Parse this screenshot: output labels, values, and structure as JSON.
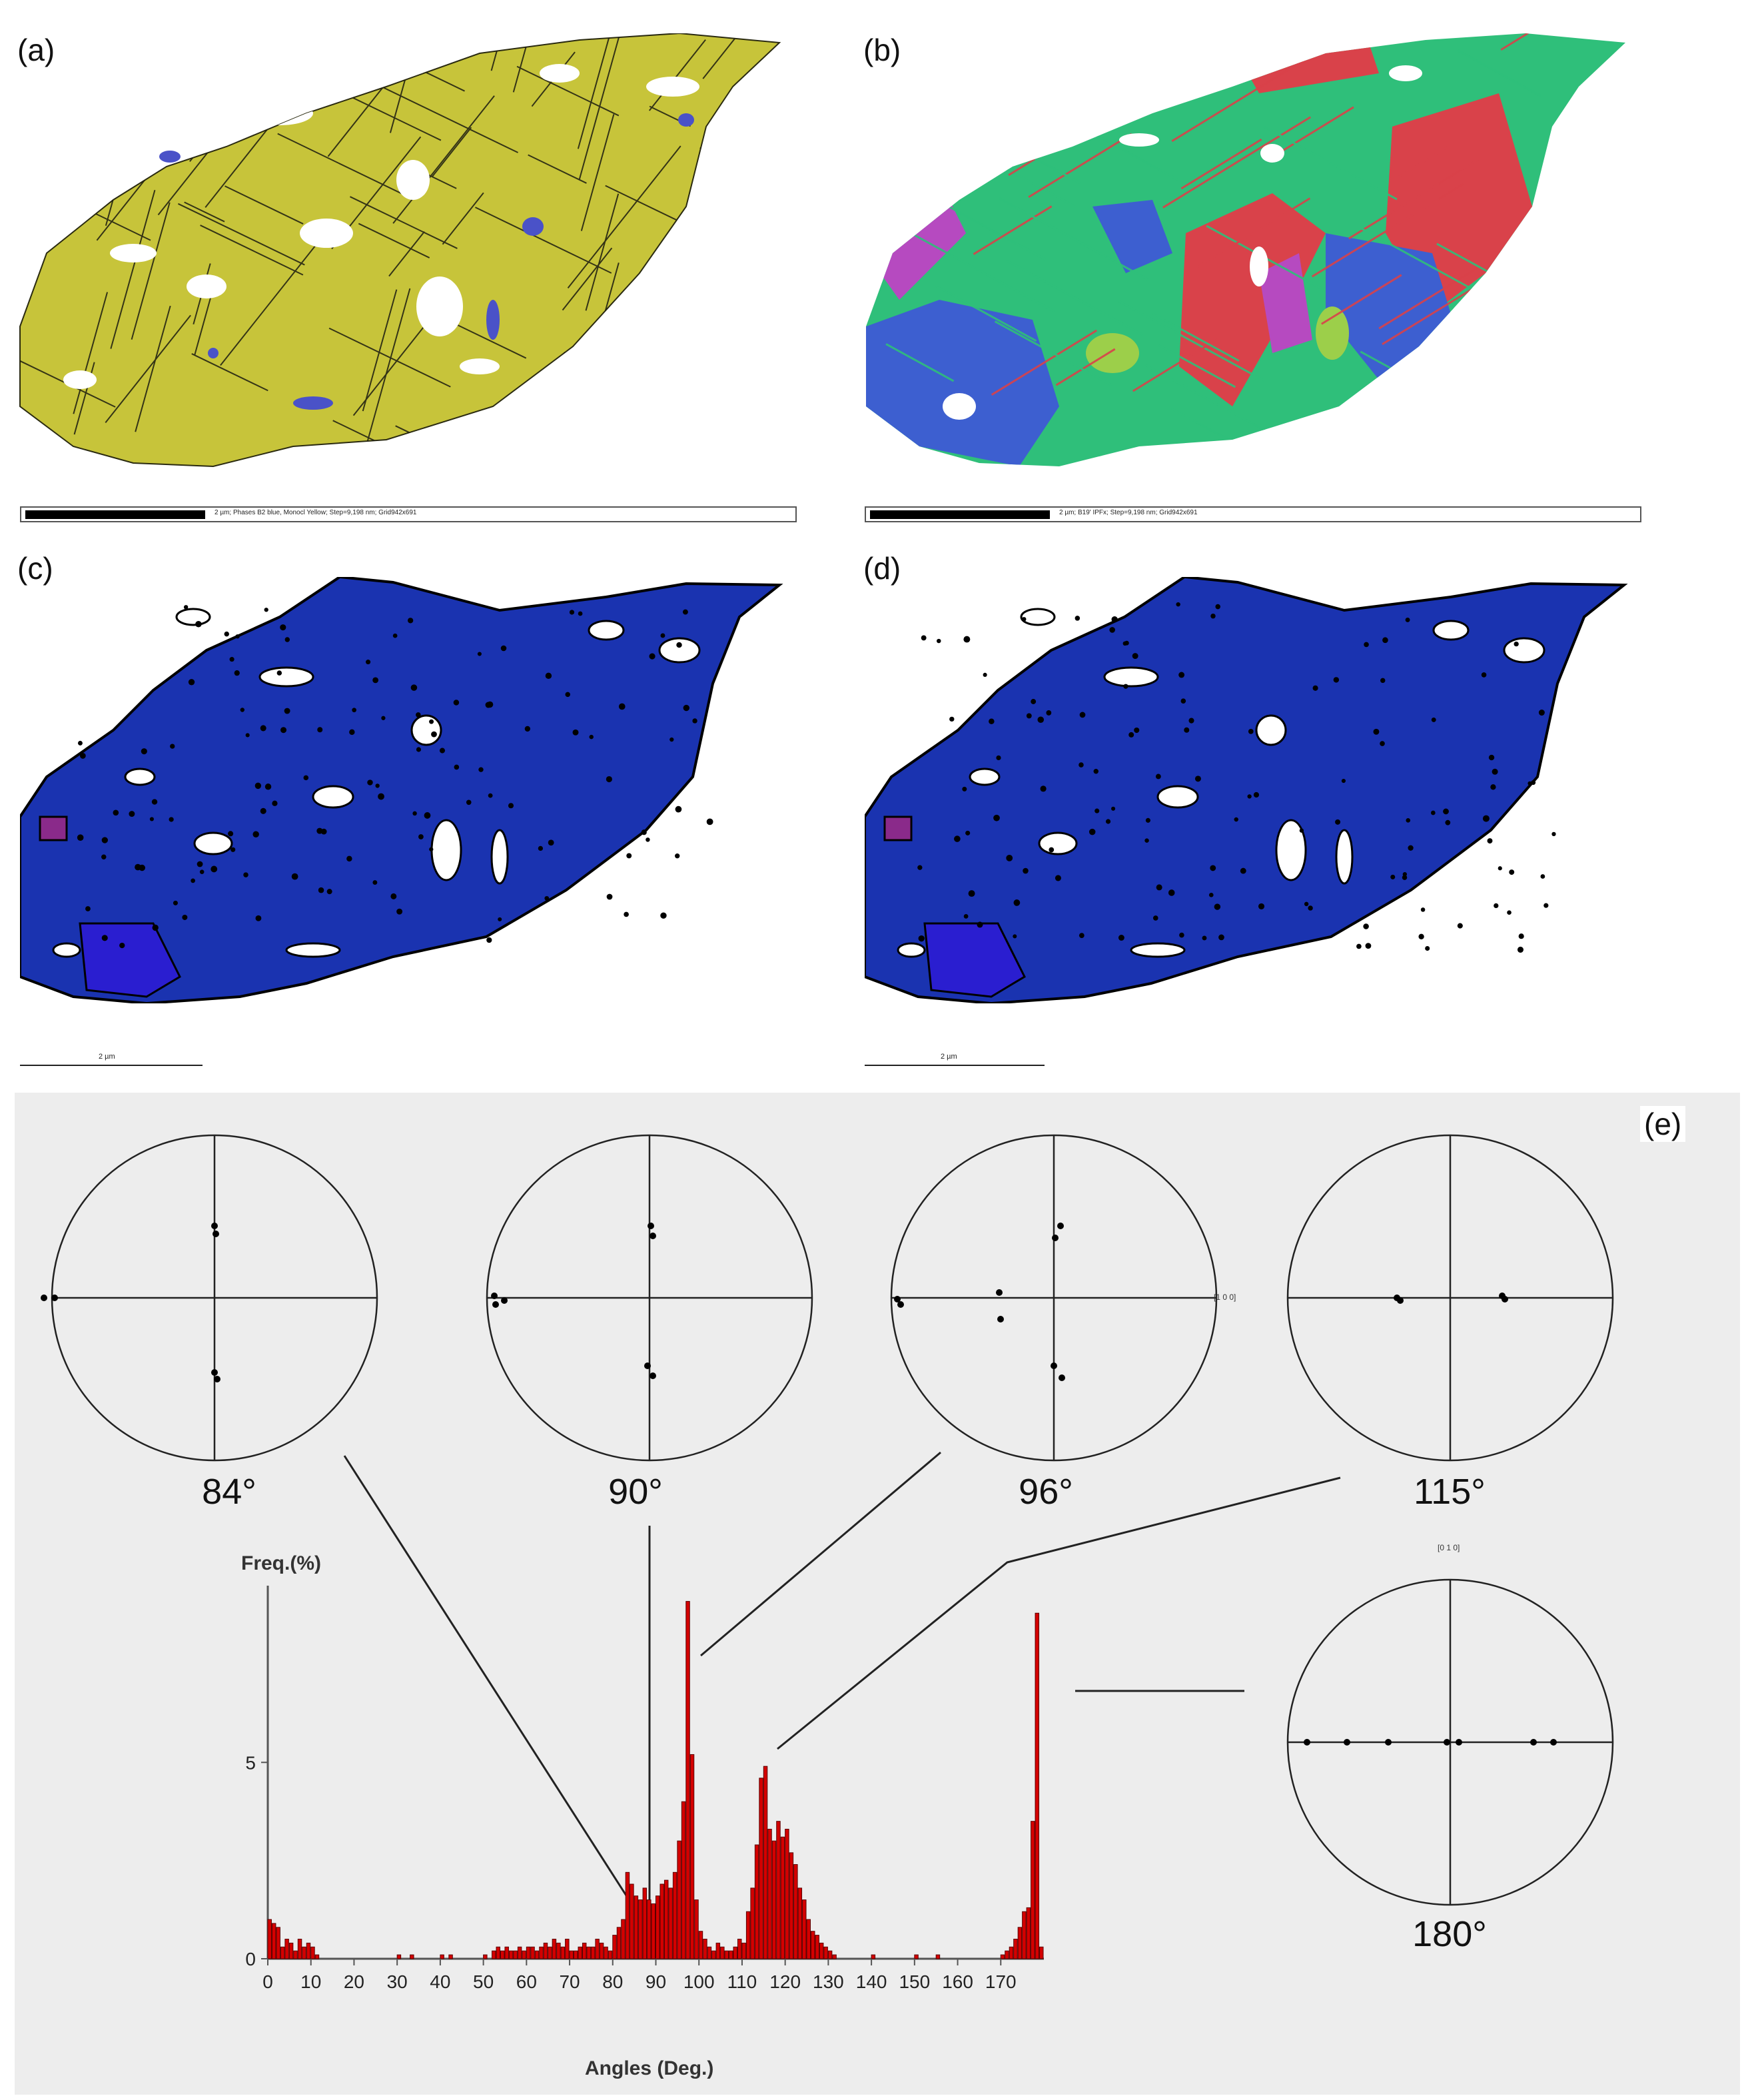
{
  "panels": {
    "a": {
      "label": "(a)",
      "scalebar_text": "2 µm; Phases B2 blue, Monocl Yellow; Step=9,198 nm; Grid942x691",
      "colors": {
        "matrix": "#c7c43a",
        "minor_phase": "#4a52c8",
        "lines": "#1b1b10"
      }
    },
    "b": {
      "label": "(b)",
      "scalebar_text": "2 µm; B19' IPFx; Step=9,198 nm; Grid942x691",
      "colors": [
        "#2fbf7a",
        "#d9424a",
        "#3d5fd0",
        "#b64ac0",
        "#9ccf4a"
      ]
    },
    "c": {
      "label": "(c)",
      "scalebar_text": "2 µm",
      "colors": {
        "grain": "#1a33b0",
        "grain2": "#2a1ed0",
        "purple": "#8a2a8a"
      }
    },
    "d": {
      "label": "(d)",
      "scalebar_text": "2 µm",
      "colors": {
        "grain": "#1a33b0",
        "grain2": "#2a1ed0",
        "purple": "#8a2a8a"
      }
    }
  },
  "panel_e": {
    "label": "(e)",
    "pole_figures": [
      {
        "angle": "84°"
      },
      {
        "angle": "90°"
      },
      {
        "angle": "96°",
        "axis_label": "[1 0 0]"
      },
      {
        "angle": "115°"
      },
      {
        "angle": "180°",
        "axis_label": "[0 1 0]"
      }
    ]
  },
  "chart_data": {
    "type": "bar",
    "ylabel": "Freq.(%)",
    "xlabel": "Angles (Deg.)",
    "xlim": [
      0,
      180
    ],
    "ylim": [
      0,
      9.5
    ],
    "yticks": [
      0,
      5
    ],
    "xticks": [
      0,
      10,
      20,
      30,
      40,
      50,
      60,
      70,
      80,
      90,
      100,
      110,
      120,
      130,
      140,
      150,
      160,
      170
    ],
    "bar_color": "#d40000",
    "bin_width": 1,
    "x": [
      0,
      1,
      2,
      3,
      4,
      5,
      6,
      7,
      8,
      9,
      10,
      11,
      30,
      33,
      40,
      42,
      50,
      52,
      53,
      54,
      55,
      56,
      57,
      58,
      59,
      60,
      61,
      62,
      63,
      64,
      65,
      66,
      67,
      68,
      69,
      70,
      71,
      72,
      73,
      74,
      75,
      76,
      77,
      78,
      79,
      80,
      81,
      82,
      83,
      84,
      85,
      86,
      87,
      88,
      89,
      90,
      91,
      92,
      93,
      94,
      95,
      96,
      97,
      98,
      99,
      100,
      101,
      102,
      103,
      104,
      105,
      106,
      107,
      108,
      109,
      110,
      111,
      112,
      113,
      114,
      115,
      116,
      117,
      118,
      119,
      120,
      121,
      122,
      123,
      124,
      125,
      126,
      127,
      128,
      129,
      130,
      131,
      140,
      150,
      155,
      170,
      171,
      172,
      173,
      174,
      175,
      176,
      177,
      178,
      179
    ],
    "values": [
      1.0,
      0.9,
      0.8,
      0.3,
      0.5,
      0.4,
      0.2,
      0.5,
      0.3,
      0.4,
      0.3,
      0.1,
      0.1,
      0.1,
      0.1,
      0.1,
      0.1,
      0.2,
      0.3,
      0.2,
      0.3,
      0.2,
      0.2,
      0.3,
      0.2,
      0.3,
      0.3,
      0.2,
      0.3,
      0.4,
      0.3,
      0.5,
      0.4,
      0.3,
      0.5,
      0.2,
      0.2,
      0.3,
      0.4,
      0.3,
      0.3,
      0.5,
      0.4,
      0.3,
      0.2,
      0.6,
      0.8,
      1.0,
      2.2,
      1.9,
      1.6,
      1.5,
      1.8,
      1.5,
      1.4,
      1.6,
      1.9,
      2.0,
      1.8,
      2.2,
      3.0,
      4.0,
      9.1,
      5.2,
      1.5,
      0.7,
      0.5,
      0.3,
      0.2,
      0.4,
      0.3,
      0.2,
      0.2,
      0.3,
      0.5,
      0.4,
      1.2,
      1.8,
      2.9,
      4.6,
      4.9,
      3.3,
      3.0,
      3.5,
      3.1,
      3.3,
      2.7,
      2.4,
      1.8,
      1.5,
      1.0,
      0.7,
      0.6,
      0.4,
      0.3,
      0.2,
      0.1,
      0.1,
      0.1,
      0.1,
      0.1,
      0.2,
      0.3,
      0.5,
      0.8,
      1.2,
      1.3,
      3.5,
      8.8,
      0.3
    ]
  }
}
